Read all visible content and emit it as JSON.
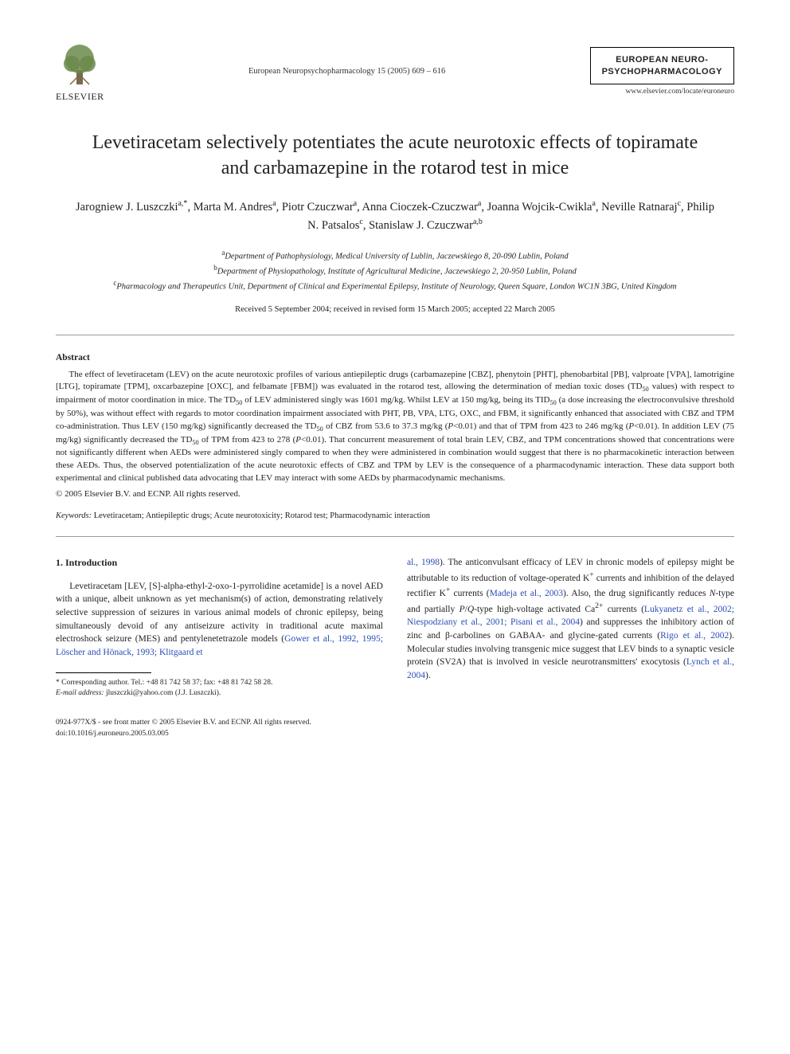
{
  "header": {
    "publisher_name": "ELSEVIER",
    "citation": "European Neuropsychopharmacology 15 (2005) 609 – 616",
    "journal_box_line1": "EUROPEAN NEURO-",
    "journal_box_line2": "PSYCHOPHARMACOLOGY",
    "journal_url": "www.elsevier.com/locate/euroneuro"
  },
  "article": {
    "title": "Levetiracetam selectively potentiates the acute neurotoxic effects of topiramate and carbamazepine in the rotarod test in mice",
    "authors_html": "Jarogniew J. Luszczki<sup>a,*</sup>, Marta M. Andres<sup>a</sup>, Piotr Czuczwar<sup>a</sup>, Anna Cioczek-Czuczwar<sup>a</sup>, Joanna Wojcik-Cwikla<sup>a</sup>, Neville Ratnaraj<sup>c</sup>, Philip N. Patsalos<sup>c</sup>, Stanislaw J. Czuczwar<sup>a,b</sup>",
    "affiliations": {
      "a": "Department of Pathophysiology, Medical University of Lublin, Jaczewskiego 8, 20-090 Lublin, Poland",
      "b": "Department of Physiopathology, Institute of Agricultural Medicine, Jaczewskiego 2, 20-950 Lublin, Poland",
      "c": "Pharmacology and Therapeutics Unit, Department of Clinical and Experimental Epilepsy, Institute of Neurology, Queen Square, London WC1N 3BG, United Kingdom"
    },
    "history": "Received 5 September 2004; received in revised form 15 March 2005; accepted 22 March 2005"
  },
  "abstract": {
    "heading": "Abstract",
    "text": "The effect of levetiracetam (LEV) on the acute neurotoxic profiles of various antiepileptic drugs (carbamazepine [CBZ], phenytoin [PHT], phenobarbital [PB], valproate [VPA], lamotrigine [LTG], topiramate [TPM], oxcarbazepine [OXC], and felbamate [FBM]) was evaluated in the rotarod test, allowing the determination of median toxic doses (TD50 values) with respect to impairment of motor coordination in mice. The TD50 of LEV administered singly was 1601 mg/kg. Whilst LEV at 150 mg/kg, being its TID50 (a dose increasing the electroconvulsive threshold by 50%), was without effect with regards to motor coordination impairment associated with PHT, PB, VPA, LTG, OXC, and FBM, it significantly enhanced that associated with CBZ and TPM co-administration. Thus LEV (150 mg/kg) significantly decreased the TD50 of CBZ from 53.6 to 37.3 mg/kg (P<0.01) and that of TPM from 423 to 246 mg/kg (P<0.01). In addition LEV (75 mg/kg) significantly decreased the TD50 of TPM from 423 to 278 (P<0.01). That concurrent measurement of total brain LEV, CBZ, and TPM concentrations showed that concentrations were not significantly different when AEDs were administered singly compared to when they were administered in combination would suggest that there is no pharmacokinetic interaction between these AEDs. Thus, the observed potentialization of the acute neurotoxic effects of CBZ and TPM by LEV is the consequence of a pharmacodynamic interaction. These data support both experimental and clinical published data advocating that LEV may interact with some AEDs by pharmacodynamic mechanisms.",
    "copyright": "© 2005 Elsevier B.V. and ECNP. All rights reserved."
  },
  "keywords": {
    "label": "Keywords:",
    "text": " Levetiracetam; Antiepileptic drugs; Acute neurotoxicity; Rotarod test; Pharmacodynamic interaction"
  },
  "body": {
    "section_heading": "1. Introduction",
    "left_para": "Levetiracetam [LEV, [S]-alpha-ethyl-2-oxo-1-pyrrolidine acetamide] is a novel AED with a unique, albeit unknown as yet mechanism(s) of action, demonstrating relatively selective suppression of seizures in various animal models of chronic epilepsy, being simultaneously devoid of any antiseizure activity in traditional acute maximal electroshock seizure (MES) and pentylenetetrazole models (",
    "left_cite": "Gower et al., 1992, 1995; Löscher and Hönack, 1993; Klitgaard et",
    "right_cont_cite": "al., 1998",
    "right_cont": "). The anticonvulsant efficacy of LEV in chronic models of epilepsy might be attributable to its reduction of voltage-operated K+ currents and inhibition of the delayed rectifier K+ currents (",
    "right_cite1": "Madeja et al., 2003",
    "right_mid1": "). Also, the drug significantly reduces N-type and partially P/Q-type high-voltage activated Ca2+ currents (",
    "right_cite2": "Lukyanetz et al., 2002; Niespodziany et al., 2001; Pisani et al., 2004",
    "right_mid2": ") and suppresses the inhibitory action of zinc and β-carbolines on GABAA- and glycine-gated currents (",
    "right_cite3": "Rigo et al., 2002",
    "right_mid3": "). Molecular studies involving transgenic mice suggest that LEV binds to a synaptic vesicle protein (SV2A) that is involved in vesicle neurotransmitters' exocytosis (",
    "right_cite4": "Lynch et al., 2004",
    "right_end": ")."
  },
  "footnote": {
    "corr": "* Corresponding author. Tel.: +48 81 742 58 37; fax: +48 81 742 58 28.",
    "email_label": "E-mail address:",
    "email": " jluszczki@yahoo.com (J.J. Luszczki)."
  },
  "footer": {
    "line1": "0924-977X/$ - see front matter © 2005 Elsevier B.V. and ECNP. All rights reserved.",
    "line2": "doi:10.1016/j.euroneuro.2005.03.005"
  },
  "colors": {
    "citation_color": "#2a4db8",
    "text_color": "#222222",
    "rule_color": "#000000"
  }
}
